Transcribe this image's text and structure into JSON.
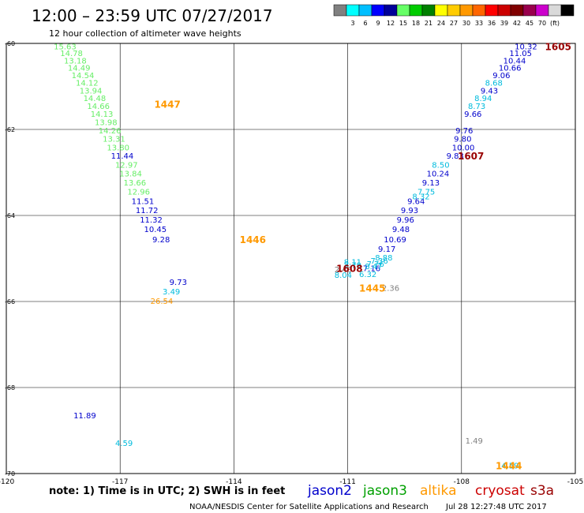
{
  "title": "12:00 – 23:59 UTC 07/27/2017",
  "subtitle": "12 hour collection of altimeter wave heights",
  "note": "note:  1) Time is in UTC;  2) SWH is in feet",
  "credit": "NOAA/NESDIS Center for Satellite Applications and Research",
  "timestamp": "Jul 28 12:27:48 UTC 2017",
  "satellites": [
    {
      "name": "jason2",
      "color": "#0000cc"
    },
    {
      "name": "jason3",
      "color": "#00a000"
    },
    {
      "name": "altika",
      "color": "#ff9900"
    },
    {
      "name": "cryosat",
      "color": "#cc0000"
    },
    {
      "name": "s3a",
      "color": "#990000"
    }
  ],
  "colorbar": {
    "colors": [
      "#808080",
      "#00ffff",
      "#00bfff",
      "#0000ff",
      "#000099",
      "#66ff66",
      "#00cc00",
      "#008000",
      "#ffff00",
      "#ffcc00",
      "#ff9900",
      "#ff6600",
      "#ff0000",
      "#cc0000",
      "#800000",
      "#99004d",
      "#cc00cc",
      "#d9d9d9",
      "#000000"
    ],
    "labels": [
      "3",
      "6",
      "9",
      "12",
      "15",
      "18",
      "21",
      "24",
      "27",
      "30",
      "33",
      "36",
      "39",
      "42",
      "45",
      "70",
      "(ft)"
    ]
  },
  "chart_data": {
    "type": "scatter",
    "x_ticks": [
      "-120",
      "-117",
      "-114",
      "-111",
      "-108",
      "-105"
    ],
    "y_ticks": [
      "-60",
      "-62",
      "-64",
      "-66",
      "-68",
      "-70"
    ],
    "xlim": [
      -120,
      -105
    ],
    "ylim": [
      -70,
      -60
    ],
    "series": [
      {
        "name": "jason3",
        "color": "#66ee66",
        "points": [
          {
            "x": -118.75,
            "y": -60.06,
            "v": "15.63"
          },
          {
            "x": -118.58,
            "y": -60.22,
            "v": "14.78"
          },
          {
            "x": -118.48,
            "y": -60.39,
            "v": "13.18"
          },
          {
            "x": -118.38,
            "y": -60.56,
            "v": "14.49"
          },
          {
            "x": -118.28,
            "y": -60.73,
            "v": "14.54"
          },
          {
            "x": -118.17,
            "y": -60.91,
            "v": "14.12"
          },
          {
            "x": -118.07,
            "y": -61.09,
            "v": "13.94"
          },
          {
            "x": -117.97,
            "y": -61.27,
            "v": "14.48"
          },
          {
            "x": -117.87,
            "y": -61.45,
            "v": "14.66"
          },
          {
            "x": -117.78,
            "y": -61.63,
            "v": "14.13"
          },
          {
            "x": -117.67,
            "y": -61.83,
            "v": "13.98"
          },
          {
            "x": -117.57,
            "y": -62.02,
            "v": "14.26"
          },
          {
            "x": -117.46,
            "y": -62.21,
            "v": "13.31"
          },
          {
            "x": -117.35,
            "y": -62.41,
            "v": "13.80"
          },
          {
            "x": -117.13,
            "y": -62.82,
            "v": "12.97"
          },
          {
            "x": -117.02,
            "y": -63.02,
            "v": "13.84"
          },
          {
            "x": -116.91,
            "y": -63.23,
            "v": "13.66"
          },
          {
            "x": -116.81,
            "y": -63.44,
            "v": "12.96"
          }
        ]
      },
      {
        "name": "jason2",
        "color": "#0000cc",
        "points": [
          {
            "x": -117.24,
            "y": -62.61,
            "v": "11.44"
          },
          {
            "x": -116.7,
            "y": -63.66,
            "v": "11.51"
          },
          {
            "x": -116.59,
            "y": -63.87,
            "v": "11.72"
          },
          {
            "x": -116.48,
            "y": -64.09,
            "v": "11.32"
          },
          {
            "x": -116.37,
            "y": -64.31,
            "v": "10.45"
          },
          {
            "x": -116.15,
            "y": -64.55,
            "v": "9.28"
          },
          {
            "x": -115.7,
            "y": -65.54,
            "v": "9.73"
          },
          {
            "x": -118.23,
            "y": -68.64,
            "v": "11.89"
          },
          {
            "x": -106.6,
            "y": -60.06,
            "v": "10.32"
          },
          {
            "x": -106.74,
            "y": -60.22,
            "v": "11.05"
          },
          {
            "x": -106.9,
            "y": -60.39,
            "v": "10.44"
          },
          {
            "x": -107.02,
            "y": -60.56,
            "v": "10.66"
          },
          {
            "x": -107.18,
            "y": -60.73,
            "v": "9.06"
          },
          {
            "x": -107.5,
            "y": -61.09,
            "v": "9.43"
          },
          {
            "x": -107.93,
            "y": -61.63,
            "v": "9.66"
          },
          {
            "x": -108.16,
            "y": -62.02,
            "v": "9.76"
          },
          {
            "x": -108.2,
            "y": -62.21,
            "v": "9.80"
          },
          {
            "x": -108.25,
            "y": -62.41,
            "v": "10.00"
          },
          {
            "x": -108.4,
            "y": -62.61,
            "v": "9.83"
          },
          {
            "x": -108.92,
            "y": -63.02,
            "v": "10.24"
          },
          {
            "x": -109.04,
            "y": -63.23,
            "v": "9.13"
          },
          {
            "x": -109.43,
            "y": -63.66,
            "v": "9.64"
          },
          {
            "x": -109.6,
            "y": -63.87,
            "v": "9.93"
          },
          {
            "x": -109.71,
            "y": -64.09,
            "v": "9.96"
          },
          {
            "x": -109.83,
            "y": -64.31,
            "v": "9.48"
          },
          {
            "x": -110.05,
            "y": -64.55,
            "v": "10.69"
          },
          {
            "x": -110.2,
            "y": -64.77,
            "v": "9.17"
          },
          {
            "x": -110.6,
            "y": -65.22,
            "v": "7.16"
          }
        ]
      },
      {
        "name": "jason2-cyan",
        "color": "#00bbdd",
        "points": [
          {
            "x": -107.38,
            "y": -60.91,
            "v": "8.68"
          },
          {
            "x": -107.66,
            "y": -61.27,
            "v": "8.94"
          },
          {
            "x": -107.83,
            "y": -61.45,
            "v": "8.73"
          },
          {
            "x": -108.78,
            "y": -62.82,
            "v": "8.50"
          },
          {
            "x": -109.16,
            "y": -63.44,
            "v": "7.75"
          },
          {
            "x": -109.3,
            "y": -63.55,
            "v": "8.32"
          },
          {
            "x": -110.28,
            "y": -64.97,
            "v": "8.88"
          },
          {
            "x": -110.4,
            "y": -65.05,
            "v": "7.36"
          },
          {
            "x": -110.5,
            "y": -65.12,
            "v": "7.76"
          },
          {
            "x": -110.55,
            "y": -65.17,
            "v": "8.47"
          },
          {
            "x": -110.7,
            "y": -65.36,
            "v": "6.32"
          },
          {
            "x": -111.1,
            "y": -65.07,
            "v": "8.11"
          },
          {
            "x": -111.1,
            "y": -65.15,
            "v": "7.79"
          },
          {
            "x": -111.35,
            "y": -65.38,
            "v": "8.04"
          },
          {
            "x": -115.88,
            "y": -65.76,
            "v": "3.49"
          },
          {
            "x": -117.13,
            "y": -69.28,
            "v": "4.59"
          },
          {
            "x": -106.95,
            "y": -69.81,
            "v": "4.59"
          }
        ]
      },
      {
        "name": "gray",
        "color": "#808080",
        "points": [
          {
            "x": -111.35,
            "y": -65.25,
            "v": "2.48"
          },
          {
            "x": -110.1,
            "y": -65.68,
            "v": "2.36"
          },
          {
            "x": -107.9,
            "y": -69.23,
            "v": "1.49"
          }
        ]
      },
      {
        "name": "altika",
        "color": "#ff9900",
        "points": [
          {
            "x": -116.2,
            "y": -65.98,
            "v": "26.54"
          }
        ]
      }
    ],
    "time_labels": [
      {
        "x": -116.1,
        "y": -61.4,
        "v": "1447",
        "color": "#ff9900"
      },
      {
        "x": -113.85,
        "y": -64.55,
        "v": "1446",
        "color": "#ff9900"
      },
      {
        "x": -110.7,
        "y": -65.68,
        "v": "1445",
        "color": "#ff9900"
      },
      {
        "x": -107.1,
        "y": -69.81,
        "v": "1444",
        "color": "#ff9900"
      },
      {
        "x": -105.8,
        "y": -60.06,
        "v": "1605",
        "color": "#990000"
      },
      {
        "x": -108.1,
        "y": -62.61,
        "v": "1607",
        "color": "#990000"
      },
      {
        "x": -111.3,
        "y": -65.22,
        "v": "1608",
        "color": "#990000"
      }
    ]
  }
}
